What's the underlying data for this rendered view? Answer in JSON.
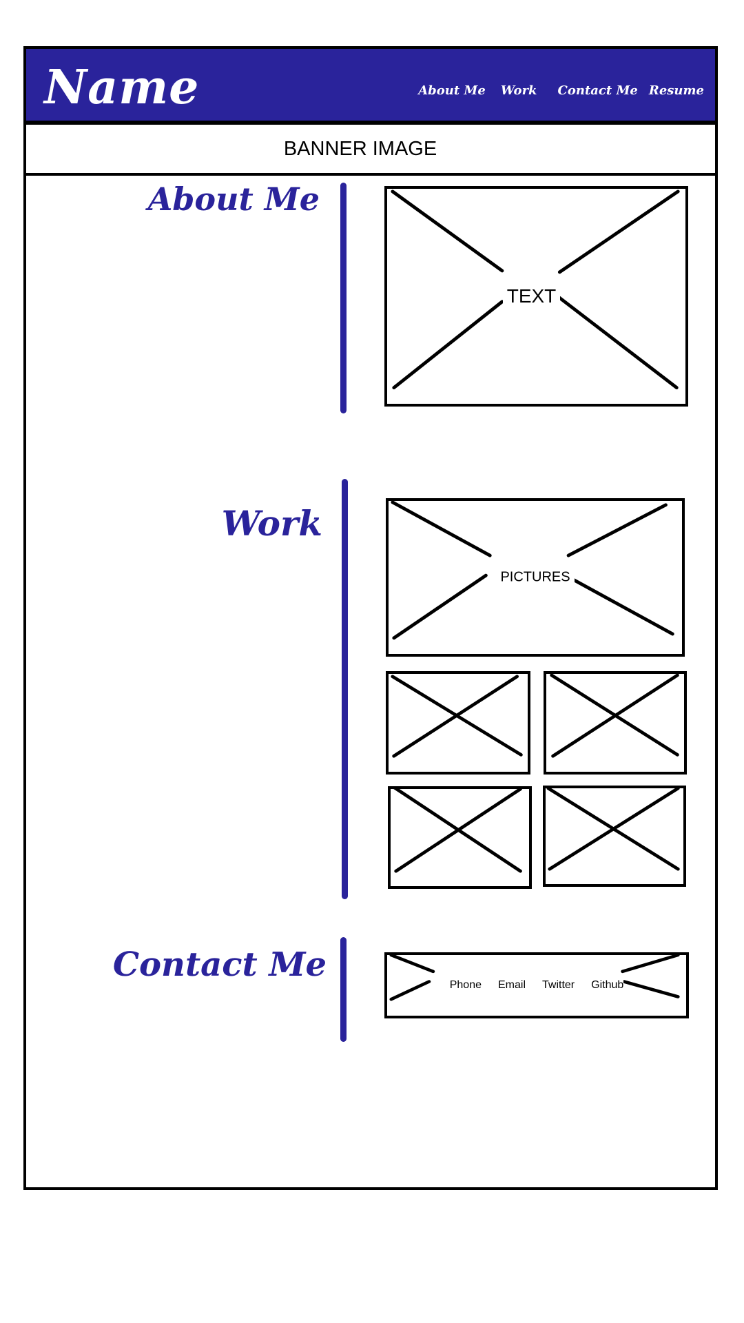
{
  "header": {
    "logo_text": "Name",
    "nav": [
      "About Me",
      "Work",
      "Contact Me",
      "Resume"
    ],
    "bg_color": "#2a239b"
  },
  "banner": {
    "label": "BANNER IMAGE"
  },
  "sections": {
    "about": {
      "title": "About Me",
      "placeholder_label": "TEXT"
    },
    "work": {
      "title": "Work",
      "placeholder_label": "PICTURES"
    },
    "contact": {
      "title": "Contact Me",
      "links": [
        "Phone",
        "Email",
        "Twitter",
        "Github"
      ]
    }
  },
  "colors": {
    "accent": "#2a239b",
    "outline": "#000000"
  }
}
